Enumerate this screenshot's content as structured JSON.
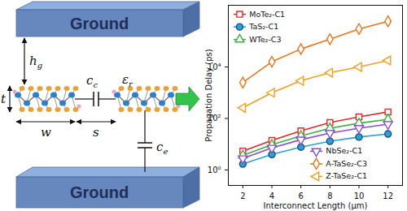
{
  "diagram": {
    "top_plate": "Ground",
    "bottom_plate": "Ground",
    "labels": {
      "gap": {
        "base": "h",
        "sub": "g"
      },
      "thickness": {
        "base": "t"
      },
      "width": {
        "base": "w"
      },
      "spacing": {
        "base": "s"
      },
      "coupling": {
        "base": "c",
        "sub": "c"
      },
      "permittivity": {
        "base": "ε",
        "sub": "r"
      },
      "electrostatic": {
        "base": "c",
        "sub": "e"
      }
    }
  },
  "chart_data": {
    "type": "line",
    "xlabel": "Interconnect Length (µm)",
    "ylabel": "Propagation Delay (ps)",
    "log": "y",
    "x": [
      2,
      4,
      6,
      8,
      10,
      12
    ],
    "xlim": [
      1,
      13
    ],
    "xticks": [
      2,
      4,
      6,
      8,
      10,
      12
    ],
    "ylim": [
      0.25,
      2500000
    ],
    "yticks": [
      {
        "value": 1,
        "label": "10⁰"
      },
      {
        "value": 100,
        "label": "10²"
      },
      {
        "value": 10000,
        "label": "10⁴"
      }
    ],
    "series": [
      {
        "name": "MoTe₂-C1",
        "color": "#e02a2a",
        "marker": "square-open",
        "values": [
          5.4,
          14,
          33,
          69,
          115,
          180
        ]
      },
      {
        "name": "TaS₂-C1",
        "color": "#2e9fd8",
        "marker": "circle-filled",
        "values": [
          1.7,
          4,
          7.7,
          13,
          19,
          25
        ]
      },
      {
        "name": "WTe₂-C3",
        "color": "#3cb043",
        "marker": "triangle-open",
        "values": [
          3.7,
          9.6,
          21,
          42,
          65,
          93
        ]
      },
      {
        "name": "NbSe₂-C1",
        "color": "#8a4fc7",
        "marker": "triangle-down-open",
        "values": [
          2.8,
          7.2,
          15,
          27,
          42,
          60
        ]
      },
      {
        "name": "A-TaSe₂-C3",
        "color": "#e8771e",
        "marker": "diamond-open",
        "values": [
          2500,
          16000,
          50000,
          120000,
          300000,
          600000
        ]
      },
      {
        "name": "Z-TaSe₂-C1",
        "color": "#f0a020",
        "marker": "triangle-left-open",
        "values": [
          260,
          1000,
          2900,
          6000,
          10000,
          18000
        ]
      }
    ]
  }
}
